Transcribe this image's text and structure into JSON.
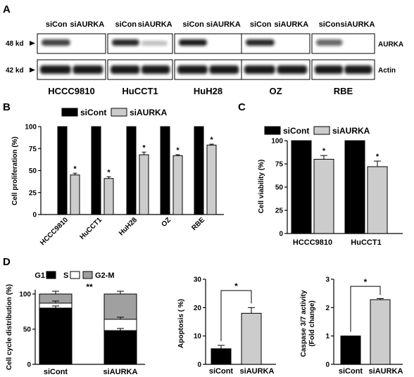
{
  "panel_letters": [
    "A",
    "B",
    "C",
    "D"
  ],
  "western_blot": {
    "markers": [
      "48 kd",
      "42 kd"
    ],
    "proteins": [
      "AURKA",
      "Actin"
    ],
    "lanes": [
      "siCon",
      "siAURKA"
    ],
    "cell_lines": [
      "HCCC9810",
      "HuCCT1",
      "HuH28",
      "OZ",
      "RBE"
    ]
  },
  "chart_data": [
    {
      "id": "B",
      "type": "bar",
      "ylabel": "Cell proliferation (%)",
      "ylim": [
        0,
        100
      ],
      "yticks": [
        0,
        25,
        50,
        75,
        100
      ],
      "categories": [
        "HCCC9810",
        "HuCCT1",
        "HuH28",
        "OZ",
        "RBE"
      ],
      "series": [
        {
          "name": "siCont",
          "values": [
            100,
            100,
            100,
            100,
            100
          ],
          "errors": [
            0,
            0,
            0,
            0,
            0
          ],
          "color": "#000000"
        },
        {
          "name": "siAURKA",
          "values": [
            45,
            41,
            68,
            67,
            79
          ],
          "errors": [
            2,
            2,
            3,
            1,
            1
          ],
          "color": "#cccccc"
        }
      ],
      "significance": [
        "*",
        "*",
        "*",
        "*",
        "*"
      ],
      "legend": "top"
    },
    {
      "id": "C",
      "type": "bar",
      "ylabel": "Cell viability (%)",
      "ylim": [
        0,
        100
      ],
      "yticks": [
        0,
        25,
        50,
        75,
        100
      ],
      "categories": [
        "HCCC9810",
        "HuCCT1"
      ],
      "series": [
        {
          "name": "siCont",
          "values": [
            100,
            100
          ],
          "errors": [
            0,
            0
          ],
          "color": "#000000"
        },
        {
          "name": "siAURKA",
          "values": [
            80,
            72
          ],
          "errors": [
            4,
            6
          ],
          "color": "#cccccc"
        }
      ],
      "significance": [
        "*",
        "*"
      ],
      "legend": "top"
    },
    {
      "id": "D1",
      "type": "bar",
      "stacked": true,
      "ylabel": "Cell cycle distribution (%)",
      "ylim": [
        0,
        100
      ],
      "yticks": [
        0,
        50,
        100
      ],
      "categories": [
        "siCont",
        "siAURKA"
      ],
      "series": [
        {
          "name": "G1",
          "values": [
            80,
            48
          ],
          "color": "#000000"
        },
        {
          "name": "S",
          "values": [
            7,
            16
          ],
          "color": "#ffffff"
        },
        {
          "name": "G2-M",
          "values": [
            13,
            36
          ],
          "color": "#a0a0a0"
        }
      ],
      "significance": "**",
      "legend": "top"
    },
    {
      "id": "D2",
      "type": "bar",
      "ylabel": "Apoptosis ( %)",
      "ylim": [
        0,
        30
      ],
      "yticks": [
        0,
        10,
        20,
        30
      ],
      "categories": [
        "siCont",
        "siAURKA"
      ],
      "values": [
        5.5,
        18
      ],
      "errors": [
        1.2,
        2
      ],
      "colors": [
        "#000000",
        "#cccccc"
      ],
      "significance": "*"
    },
    {
      "id": "D3",
      "type": "bar",
      "ylabel": "Caspase 3/7 activity",
      "ylabel2": "(Fold change)",
      "ylim": [
        0,
        3
      ],
      "yticks": [
        0,
        1,
        2,
        3
      ],
      "categories": [
        "siCont",
        "siAURKA"
      ],
      "values": [
        1.0,
        2.28
      ],
      "errors": [
        0,
        0.04
      ],
      "colors": [
        "#000000",
        "#cccccc"
      ],
      "significance": "*"
    }
  ]
}
